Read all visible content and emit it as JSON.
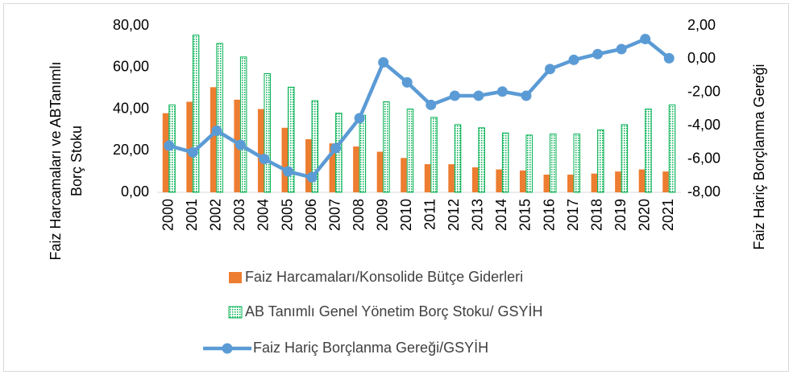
{
  "chart_data": {
    "type": "bar",
    "ylabel": [
      "Faiz Harcamaları ve ABTanımlı",
      "Borç Stoku"
    ],
    "y2label": "Faiz Hariç Borçlanma Gereği",
    "categories": [
      "2000",
      "2001",
      "2002",
      "2003",
      "2004",
      "2005",
      "2006",
      "2007",
      "2008",
      "2009",
      "2010",
      "2011",
      "2012",
      "2013",
      "2014",
      "2015",
      "2016",
      "2017",
      "2018",
      "2019",
      "2020",
      "2021"
    ],
    "series": [
      {
        "name": "Faiz Harcamaları/Konsolide Bütçe Giderleri",
        "type": "bar",
        "color": "#ed7d31",
        "values": [
          38,
          43.5,
          50.5,
          44.5,
          40,
          31,
          25.5,
          23.5,
          22,
          19.5,
          16.5,
          13.5,
          13.5,
          12,
          11,
          10.5,
          8.5,
          8.5,
          9,
          10,
          11,
          10
        ]
      },
      {
        "name": "AB Tanımlı Genel Yönetim Borç Stoku/ GSYİH",
        "type": "bar",
        "color": "#00b050",
        "pattern": "dotted",
        "values": [
          42,
          75.5,
          71.5,
          65,
          57,
          50.5,
          44,
          38,
          37,
          43.5,
          40,
          36,
          32.5,
          31,
          28.5,
          27.5,
          28,
          28,
          30,
          32.5,
          40,
          42
        ]
      },
      {
        "name": "Faiz Hariç Borçlanma Gereği/GSYİH",
        "type": "line",
        "axis": "y2",
        "color": "#5b9bd5",
        "values": [
          -5.2,
          -5.6,
          -4.3,
          -5.15,
          -6.0,
          -6.75,
          -7.1,
          -5.35,
          -3.55,
          -0.2,
          -1.4,
          -2.75,
          -2.2,
          -2.2,
          -1.95,
          -2.2,
          -0.6,
          -0.05,
          0.3,
          0.6,
          1.2,
          0.05
        ]
      }
    ],
    "ylim": [
      0,
      80
    ],
    "yticks": [
      {
        "value": 0,
        "label": "0,00"
      },
      {
        "value": 20,
        "label": "20,00"
      },
      {
        "value": 40,
        "label": "40,00"
      },
      {
        "value": 60,
        "label": "60,00"
      },
      {
        "value": 80,
        "label": "80,00"
      }
    ],
    "y2lim": [
      -8,
      2
    ],
    "y2ticks": [
      {
        "value": -8,
        "label": "-8,00"
      },
      {
        "value": -6,
        "label": "-6,00"
      },
      {
        "value": -4,
        "label": "-4,00"
      },
      {
        "value": -2,
        "label": "-2,00"
      },
      {
        "value": 0,
        "label": "0,00"
      },
      {
        "value": 2,
        "label": "2,00"
      }
    ],
    "grid": false,
    "legend": "bottom"
  }
}
